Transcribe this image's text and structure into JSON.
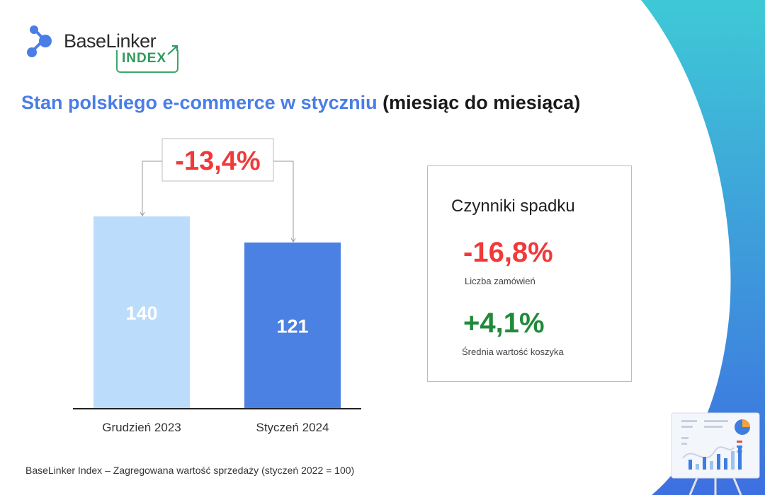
{
  "brand": {
    "name": "BaseLinker",
    "tag": "INDEX"
  },
  "title": {
    "highlight": "Stan polskiego e-commerce w styczniu",
    "rest": "(miesiąc do miesiąca)"
  },
  "chart_data": {
    "type": "bar",
    "categories": [
      "Grudzień 2023",
      "Styczeń 2024"
    ],
    "values": [
      140,
      121
    ],
    "value_labels": [
      "140",
      "121"
    ],
    "colors": [
      "#bcdcfb",
      "#4b81e3"
    ],
    "change_label": "-13,4%",
    "change_color": "#f03a3a",
    "ylim": [
      0,
      140
    ]
  },
  "factors": {
    "title": "Czynniki spadku",
    "items": [
      {
        "value": "-16,8%",
        "label": "Liczba zamówień",
        "color": "#f03a3a"
      },
      {
        "value": "+4,1%",
        "label": "Średnia wartość koszyka",
        "color": "#1f8a3a"
      }
    ]
  },
  "footnote": "BaseLinker Index – Zagregowana wartość sprzedaży (styczeń 2022 = 100)",
  "colors": {
    "accent_blue": "#4a7de6",
    "gradient_top": "#3ec9d6",
    "gradient_bottom": "#3d6fe0",
    "page_bg": "#f4f5f9"
  },
  "icons": {
    "logo": "molecule-logo-icon",
    "illustration": "presentation-board-icon"
  }
}
